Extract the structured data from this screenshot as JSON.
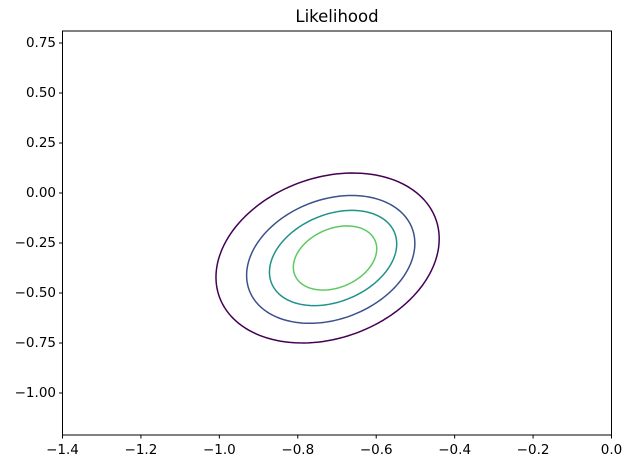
{
  "chart_data": {
    "type": "contour",
    "title": "Likelihood",
    "colormap": "viridis",
    "grid": false,
    "legend": null,
    "xlim": [
      -1.4,
      0.0
    ],
    "ylim": [
      -1.21,
      0.81
    ],
    "x_ticks": {
      "values": [
        -1.4,
        -1.2,
        -1.0,
        -0.8,
        -0.6,
        -0.4,
        -0.2,
        0.0
      ],
      "labels": [
        "−1.4",
        "−1.2",
        "−1.0",
        "−0.8",
        "−0.6",
        "−0.4",
        "−0.2",
        "0.0"
      ]
    },
    "y_ticks": {
      "values": [
        0.75,
        0.5,
        0.25,
        0.0,
        -0.25,
        -0.5,
        -0.75,
        -1.0
      ],
      "labels": [
        "0.75",
        "0.50",
        "0.25",
        "0.00",
        "−0.25",
        "−0.50",
        "−0.75",
        "−1.00"
      ]
    },
    "contours": [
      {
        "name": "level-1-outer",
        "color": "#440154",
        "center": [
          -0.724,
          -0.325
        ],
        "semi_major": 0.433,
        "semi_minor": 0.272,
        "angle_deg": 75.6
      },
      {
        "name": "level-2",
        "color": "#3b528b",
        "center": [
          -0.716,
          -0.332
        ],
        "semi_major": 0.327,
        "semi_minor": 0.203,
        "angle_deg": 74.3
      },
      {
        "name": "level-3",
        "color": "#21918c",
        "center": [
          -0.71,
          -0.325
        ],
        "semi_major": 0.246,
        "semi_minor": 0.15,
        "angle_deg": 71.5
      },
      {
        "name": "level-4-inner",
        "color": "#5ec962",
        "center": [
          -0.705,
          -0.325
        ],
        "semi_major": 0.165,
        "semi_minor": 0.099,
        "angle_deg": 72.9
      }
    ],
    "style": {
      "line_width": 1.5,
      "spine_color": "#000000",
      "background": "#ffffff"
    }
  }
}
